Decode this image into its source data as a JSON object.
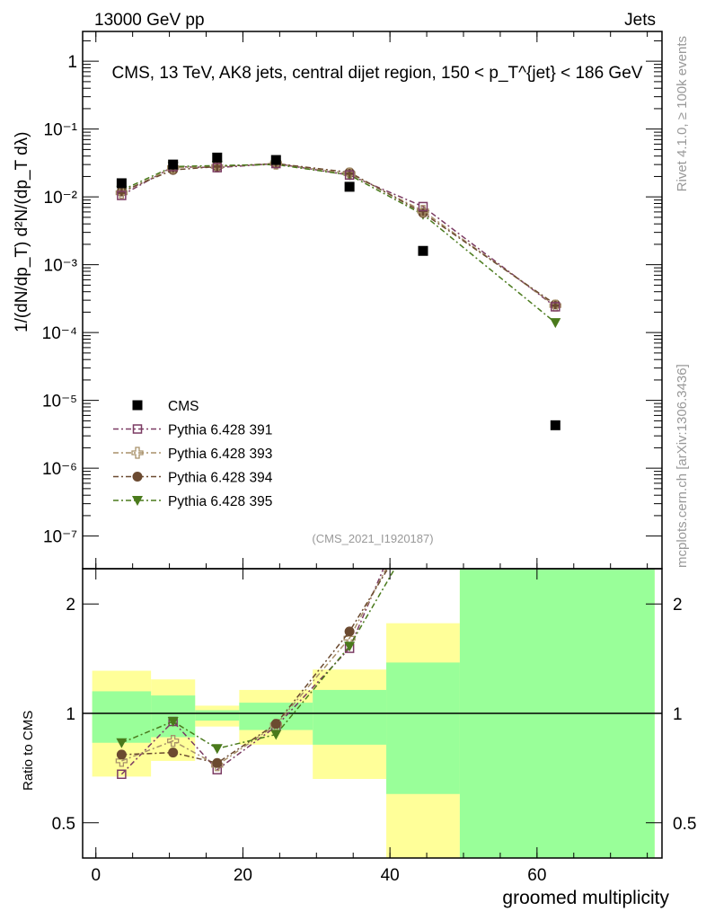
{
  "header": {
    "left": "13000 GeV pp",
    "right": "Jets"
  },
  "side": {
    "rivet": "Rivet 4.1.0, ≥ 100k events",
    "mcplots": "mcplots.cern.ch [arXiv:1306.3436]"
  },
  "chart_data": {
    "type": "scatter",
    "title": "CMS, 13 TeV, AK8 jets, central dijet region, 150 < p_T^{jet} < 186 GeV",
    "analysis_id": "(CMS_2021_I1920187)",
    "xlabel": "groomed multiplicity",
    "ylabel": "1/(dN/dp_T) d²N/(dp_T dλ)",
    "ratio_ylabel": "Ratio to CMS",
    "xlim": [
      -1.8,
      77
    ],
    "ylim": [
      3.3e-08,
      2.75
    ],
    "ratio_ylim": [
      0.4,
      2.5
    ],
    "yscale": "log",
    "x": [
      3.5,
      10.5,
      16.5,
      24.5,
      34.5,
      44.5,
      62.5
    ],
    "bin_edges": [
      -0.5,
      7.5,
      13.5,
      19.5,
      29.5,
      39.5,
      49.5,
      76
    ],
    "x_ticks": [
      "0",
      "20",
      "40",
      "60"
    ],
    "x_tick_values": [
      0,
      20,
      40,
      60
    ],
    "y_ticks": [
      "1",
      "10⁻¹",
      "10⁻²",
      "10⁻³",
      "10⁻⁴",
      "10⁻⁵",
      "10⁻⁶",
      "10⁻⁷"
    ],
    "y_tick_values": [
      1,
      0.1,
      0.01,
      0.001,
      0.0001,
      1e-05,
      1e-06,
      1e-07
    ],
    "ratio_ticks": [
      "2",
      "1",
      "0.5"
    ],
    "ratio_tick_values": [
      2,
      1,
      0.5
    ],
    "band_green": [
      [
        0.83,
        1.15
      ],
      [
        0.86,
        1.12
      ],
      [
        0.955,
        1.02
      ],
      [
        0.9,
        1.07
      ],
      [
        0.82,
        1.16
      ],
      [
        0.6,
        1.38
      ],
      [
        0.2,
        5
      ]
    ],
    "band_yellow": [
      [
        0.67,
        1.31
      ],
      [
        0.74,
        1.24
      ],
      [
        0.92,
        1.05
      ],
      [
        0.82,
        1.16
      ],
      [
        0.66,
        1.32
      ],
      [
        0.2,
        1.77
      ],
      [
        0.2,
        5
      ]
    ],
    "series": [
      {
        "name": "CMS",
        "marker": "square-filled",
        "color": "#000000",
        "values": [
          0.0159,
          0.03,
          0.038,
          0.035,
          0.0141,
          0.0016,
          4.3e-06
        ]
      },
      {
        "name": "Pythia 6.428 391",
        "marker": "square-open",
        "color": "#7b3b63",
        "values": [
          0.0105,
          0.028,
          0.027,
          0.031,
          0.021,
          0.0072,
          0.00024
        ],
        "ratio": [
          0.68,
          0.95,
          0.7,
          0.92,
          1.51,
          4.5,
          56
        ]
      },
      {
        "name": "Pythia 6.428 393",
        "marker": "cross-open",
        "color": "#a8916a",
        "values": [
          0.0115,
          0.027,
          0.028,
          0.031,
          0.022,
          0.0062,
          0.00025
        ],
        "ratio": [
          0.74,
          0.84,
          0.72,
          0.93,
          1.61,
          3.9,
          58
        ]
      },
      {
        "name": "Pythia 6.428 394",
        "marker": "circle-filled",
        "color": "#6b4a30",
        "values": [
          0.012,
          0.025,
          0.028,
          0.031,
          0.023,
          0.0058,
          0.00026
        ],
        "ratio": [
          0.77,
          0.78,
          0.73,
          0.935,
          1.68,
          3.6,
          60
        ]
      },
      {
        "name": "Pythia 6.428 395",
        "marker": "triangle-down",
        "color": "#4a7a1c",
        "values": [
          0.0125,
          0.028,
          0.029,
          0.03,
          0.021,
          0.0055,
          0.00014
        ],
        "ratio": [
          0.83,
          0.95,
          0.8,
          0.875,
          1.53,
          3.4,
          33
        ]
      }
    ]
  }
}
